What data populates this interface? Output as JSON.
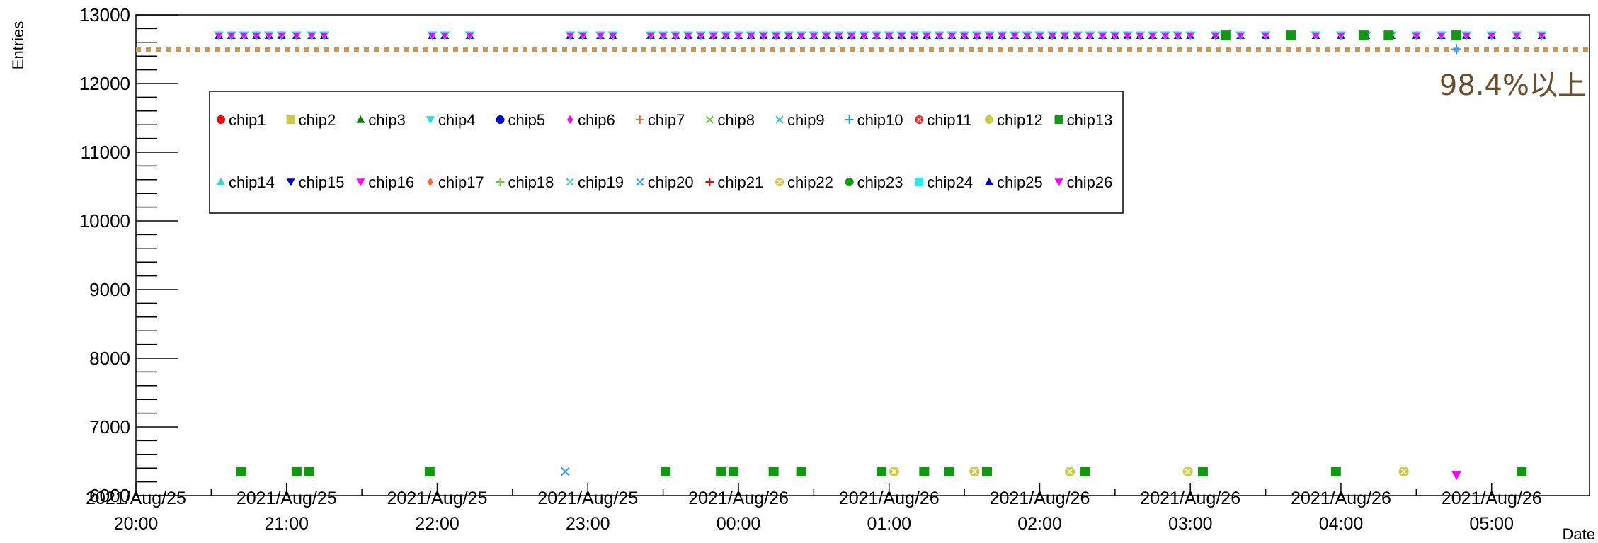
{
  "chart_data": {
    "type": "scatter",
    "ylabel": "Entries",
    "xlabel": "Date",
    "ylim": [
      6000,
      13000
    ],
    "yticks": [
      6000,
      7000,
      8000,
      9000,
      10000,
      11000,
      12000,
      13000
    ],
    "xlim": [
      "2021-08-25 20:00",
      "2021-08-26 05:39"
    ],
    "xticks": [
      {
        "time": "2021-08-25 20:00",
        "date_label": "2021/Aug/25",
        "time_label": "20:00"
      },
      {
        "time": "2021-08-25 21:00",
        "date_label": "2021/Aug/25",
        "time_label": "21:00"
      },
      {
        "time": "2021-08-25 22:00",
        "date_label": "2021/Aug/25",
        "time_label": "22:00"
      },
      {
        "time": "2021-08-25 23:00",
        "date_label": "2021/Aug/25",
        "time_label": "23:00"
      },
      {
        "time": "2021-08-26 00:00",
        "date_label": "2021/Aug/26",
        "time_label": "00:00"
      },
      {
        "time": "2021-08-26 01:00",
        "date_label": "2021/Aug/26",
        "time_label": "01:00"
      },
      {
        "time": "2021-08-26 02:00",
        "date_label": "2021/Aug/26",
        "time_label": "02:00"
      },
      {
        "time": "2021-08-26 03:00",
        "date_label": "2021/Aug/26",
        "time_label": "03:00"
      },
      {
        "time": "2021-08-26 04:00",
        "date_label": "2021/Aug/26",
        "time_label": "04:00"
      },
      {
        "time": "2021-08-26 05:00",
        "date_label": "2021/Aug/26",
        "time_label": "05:00"
      }
    ],
    "reference_line": {
      "value": 12500,
      "label": "98.4%以上",
      "color": "#c09a5c",
      "label_color": "#6b4f2a"
    },
    "legend": [
      {
        "name": "chip1",
        "color": "#ff0000",
        "marker": "circle"
      },
      {
        "name": "chip2",
        "color": "#cccc44",
        "marker": "square"
      },
      {
        "name": "chip3",
        "color": "#117711",
        "marker": "triangle-up"
      },
      {
        "name": "chip4",
        "color": "#22dddd",
        "marker": "triangle-down"
      },
      {
        "name": "chip5",
        "color": "#0000cc",
        "marker": "circle"
      },
      {
        "name": "chip6",
        "color": "#ff00ff",
        "marker": "diamond"
      },
      {
        "name": "chip7",
        "color": "#ff6633",
        "marker": "plus"
      },
      {
        "name": "chip8",
        "color": "#66cc33",
        "marker": "star"
      },
      {
        "name": "chip9",
        "color": "#33ccbb",
        "marker": "star"
      },
      {
        "name": "chip10",
        "color": "#2299ff",
        "marker": "plus"
      },
      {
        "name": "chip11",
        "color": "#ff2222",
        "marker": "circle-x"
      },
      {
        "name": "chip12",
        "color": "#cccc44",
        "marker": "circle"
      },
      {
        "name": "chip13",
        "color": "#119911",
        "marker": "square"
      },
      {
        "name": "chip14",
        "color": "#22dddd",
        "marker": "triangle-up"
      },
      {
        "name": "chip15",
        "color": "#0000cc",
        "marker": "triangle-down"
      },
      {
        "name": "chip16",
        "color": "#ff00ff",
        "marker": "triangle-down-small"
      },
      {
        "name": "chip17",
        "color": "#ff6633",
        "marker": "diamond"
      },
      {
        "name": "chip18",
        "color": "#66cc33",
        "marker": "plus"
      },
      {
        "name": "chip19",
        "color": "#33ccbb",
        "marker": "star"
      },
      {
        "name": "chip20",
        "color": "#2299ff",
        "marker": "cross"
      },
      {
        "name": "chip21",
        "color": "#ff0000",
        "marker": "plus"
      },
      {
        "name": "chip22",
        "color": "#cccc44",
        "marker": "circle-x"
      },
      {
        "name": "chip23",
        "color": "#119911",
        "marker": "circle"
      },
      {
        "name": "chip24",
        "color": "#22eeee",
        "marker": "square"
      },
      {
        "name": "chip25",
        "color": "#0000cc",
        "marker": "triangle-up"
      },
      {
        "name": "chip26",
        "color": "#ff00ff",
        "marker": "triangle-down"
      }
    ],
    "cluster": {
      "value": 12700,
      "marker_colors": [
        "#22dddd",
        "#ff00ff"
      ],
      "times": [
        "20:33",
        "20:38",
        "20:43",
        "20:48",
        "20:53",
        "20:58",
        "21:04",
        "21:10",
        "21:15",
        "21:58",
        "22:03",
        "22:13",
        "22:53",
        "22:58",
        "23:05",
        "23:10",
        "23:25",
        "23:30",
        "23:35",
        "23:40",
        "23:45",
        "23:50",
        "23:55",
        "00:00",
        "00:05",
        "00:10",
        "00:15",
        "00:20",
        "00:25",
        "00:30",
        "00:35",
        "00:40",
        "00:45",
        "00:50",
        "00:55",
        "01:00",
        "01:05",
        "01:10",
        "01:15",
        "01:20",
        "01:25",
        "01:30",
        "01:35",
        "01:40",
        "01:45",
        "01:50",
        "01:55",
        "02:00",
        "02:05",
        "02:10",
        "02:15",
        "02:20",
        "02:25",
        "02:30",
        "02:35",
        "02:40",
        "02:45",
        "02:50",
        "02:55",
        "03:00",
        "03:10",
        "03:20",
        "03:30",
        "03:40",
        "03:50",
        "04:00",
        "04:10",
        "04:20",
        "04:30",
        "04:40",
        "04:50",
        "05:00",
        "05:10",
        "05:20"
      ]
    },
    "series": [
      {
        "name": "chip13",
        "points": [
          {
            "x": "2021-08-25 20:42",
            "y": 6350
          },
          {
            "x": "2021-08-25 21:04",
            "y": 6350
          },
          {
            "x": "2021-08-25 21:09",
            "y": 6350
          },
          {
            "x": "2021-08-25 21:57",
            "y": 6350
          },
          {
            "x": "2021-08-25 23:31",
            "y": 6350
          },
          {
            "x": "2021-08-25 23:53",
            "y": 6350
          },
          {
            "x": "2021-08-25 23:58",
            "y": 6350
          },
          {
            "x": "2021-08-26 00:14",
            "y": 6350
          },
          {
            "x": "2021-08-26 00:25",
            "y": 6350
          },
          {
            "x": "2021-08-26 00:57",
            "y": 6350
          },
          {
            "x": "2021-08-26 01:14",
            "y": 6350
          },
          {
            "x": "2021-08-26 01:24",
            "y": 6350
          },
          {
            "x": "2021-08-26 01:39",
            "y": 6350
          },
          {
            "x": "2021-08-26 02:18",
            "y": 6350
          },
          {
            "x": "2021-08-26 03:05",
            "y": 6350
          },
          {
            "x": "2021-08-26 03:58",
            "y": 6350
          },
          {
            "x": "2021-08-26 05:12",
            "y": 6350
          },
          {
            "x": "2021-08-26 03:14",
            "y": 12700
          },
          {
            "x": "2021-08-26 03:40",
            "y": 12700
          },
          {
            "x": "2021-08-26 04:09",
            "y": 12700
          },
          {
            "x": "2021-08-26 04:19",
            "y": 12700
          },
          {
            "x": "2021-08-26 04:46",
            "y": 12700
          }
        ]
      },
      {
        "name": "chip22",
        "points": [
          {
            "x": "2021-08-26 01:02",
            "y": 6350
          },
          {
            "x": "2021-08-26 01:34",
            "y": 6350
          },
          {
            "x": "2021-08-26 02:12",
            "y": 6350
          },
          {
            "x": "2021-08-26 02:59",
            "y": 6350
          },
          {
            "x": "2021-08-26 04:25",
            "y": 6350
          }
        ]
      },
      {
        "name": "chip20",
        "points": [
          {
            "x": "2021-08-25 22:51",
            "y": 6350
          }
        ]
      },
      {
        "name": "chip26",
        "points": [
          {
            "x": "2021-08-26 04:46",
            "y": 6300
          }
        ]
      },
      {
        "name": "chip10",
        "points": [
          {
            "x": "2021-08-26 04:46",
            "y": 12500
          }
        ]
      }
    ]
  }
}
